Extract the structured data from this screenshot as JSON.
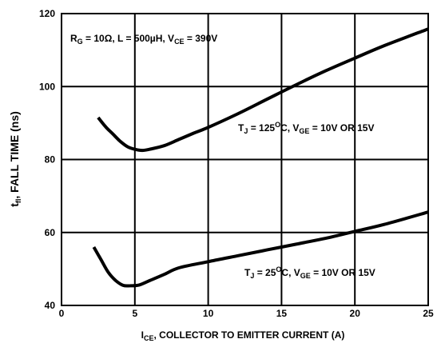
{
  "chart_data": {
    "type": "line",
    "x_axis": {
      "label_main": "I",
      "label_sub": "CE",
      "label_rest": ", COLLECTOR TO EMITTER CURRENT (A)",
      "range": [
        0,
        25
      ],
      "ticks": [
        "0",
        "5",
        "10",
        "15",
        "20",
        "25"
      ]
    },
    "y_axis": {
      "label_main": "t",
      "label_sub": "fI",
      "label_rest": ", FALL TIME  (ns)",
      "range": [
        40,
        120
      ],
      "ticks": [
        "40",
        "60",
        "80",
        "100",
        "120"
      ]
    },
    "grid": true,
    "conditions": {
      "rg": "R",
      "rg_sub": "G",
      "rg_rest": " = 10Ω, L = 500µH, V",
      "vce_sub": "CE",
      "vce_rest": " = 390V"
    },
    "series": [
      {
        "name_parts": {
          "t": "T",
          "t_sub": "J",
          "temp": " = 125",
          "sup": "O",
          "mid": "C, V",
          "v_sub": "GE",
          "end": " = 10V OR 15V"
        },
        "x": [
          2.5,
          3.0,
          3.5,
          4.0,
          4.5,
          5.0,
          5.5,
          6.0,
          7.0,
          8.0,
          9.0,
          10.0,
          12.0,
          14.0,
          16.0,
          18.0,
          20.0,
          22.0,
          25.0
        ],
        "y": [
          91.5,
          89.0,
          87.0,
          85.0,
          83.5,
          82.8,
          82.5,
          82.8,
          83.8,
          85.5,
          87.2,
          88.8,
          92.5,
          96.5,
          100.5,
          104.3,
          107.8,
          111.2,
          115.8
        ]
      },
      {
        "name_parts": {
          "t": "T",
          "t_sub": "J",
          "temp": " = 25",
          "sup": "O",
          "mid": "C, V",
          "v_sub": "GE",
          "end": " = 10V OR 15V"
        },
        "x": [
          2.2,
          2.7,
          3.2,
          3.7,
          4.2,
          4.7,
          5.3,
          6.0,
          7.0,
          8.0,
          10.0,
          12.0,
          14.0,
          16.0,
          18.0,
          20.0,
          22.0,
          25.0
        ],
        "y": [
          56.0,
          52.5,
          49.0,
          46.8,
          45.5,
          45.4,
          45.6,
          46.8,
          48.5,
          50.3,
          52.0,
          53.6,
          55.2,
          56.8,
          58.4,
          60.3,
          62.2,
          65.6
        ]
      }
    ]
  }
}
